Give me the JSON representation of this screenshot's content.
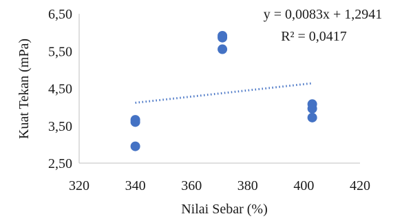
{
  "chart_data": {
    "type": "scatter",
    "title": "",
    "xlabel": "Nilai Sebar (%)",
    "ylabel": "Kuat Tekan (mPa)",
    "xlim": [
      320,
      420
    ],
    "ylim": [
      2.5,
      6.5
    ],
    "x_ticks": [
      "320",
      "340",
      "360",
      "380",
      "400",
      "420"
    ],
    "y_ticks": [
      "2,50",
      "3,50",
      "4,50",
      "5,50",
      "6,50"
    ],
    "series": [
      {
        "points": [
          {
            "x": 340,
            "y": 2.95
          },
          {
            "x": 340,
            "y": 3.6
          },
          {
            "x": 340,
            "y": 3.66
          },
          {
            "x": 371,
            "y": 5.55
          },
          {
            "x": 371,
            "y": 5.86
          },
          {
            "x": 371,
            "y": 5.91
          },
          {
            "x": 403,
            "y": 3.72
          },
          {
            "x": 403,
            "y": 3.96
          },
          {
            "x": 403,
            "y": 4.08
          }
        ],
        "color": "#4472c4"
      }
    ],
    "trendline": {
      "type": "linear",
      "slope": 0.0083,
      "intercept": 1.2941,
      "x_range": [
        340,
        403
      ],
      "color": "#4472c4",
      "style": "dotted",
      "equation_label": "y = 0,0083x + 1,2941",
      "r2_label": "R² = 0,0417"
    },
    "grid": false,
    "legend": "none"
  }
}
